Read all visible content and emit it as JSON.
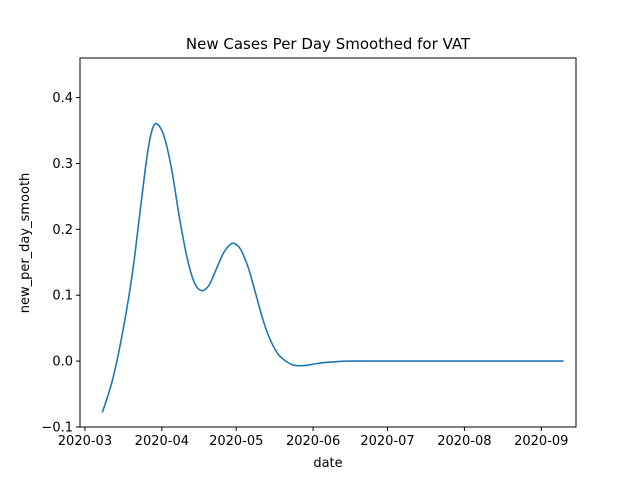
{
  "chart_data": {
    "type": "line",
    "title": "New Cases Per Day Smoothed for VAT",
    "xlabel": "date",
    "ylabel": "new_per_day_smooth",
    "xlim": [
      "2020-02-28",
      "2020-09-15"
    ],
    "ylim": [
      -0.1,
      0.46
    ],
    "x_ticks": [
      "2020-03-01",
      "2020-04-01",
      "2020-05-01",
      "2020-06-01",
      "2020-07-01",
      "2020-08-01",
      "2020-09-01"
    ],
    "x_tick_labels": [
      "2020-03",
      "2020-04",
      "2020-05",
      "2020-06",
      "2020-07",
      "2020-08",
      "2020-09"
    ],
    "y_ticks": [
      -0.1,
      0.0,
      0.1,
      0.2,
      0.3,
      0.4
    ],
    "y_tick_labels": [
      "−0.1",
      "0.0",
      "0.1",
      "0.2",
      "0.3",
      "0.4"
    ],
    "grid": false,
    "series": [
      {
        "color": "#1f77b4",
        "x": [
          "2020-03-08",
          "2020-03-12",
          "2020-03-16",
          "2020-03-20",
          "2020-03-23",
          "2020-03-26",
          "2020-03-28",
          "2020-03-30",
          "2020-04-02",
          "2020-04-05",
          "2020-04-08",
          "2020-04-11",
          "2020-04-14",
          "2020-04-17",
          "2020-04-20",
          "2020-04-23",
          "2020-04-26",
          "2020-04-29",
          "2020-05-01",
          "2020-05-03",
          "2020-05-06",
          "2020-05-09",
          "2020-05-12",
          "2020-05-15",
          "2020-05-18",
          "2020-05-21",
          "2020-05-24",
          "2020-05-27",
          "2020-05-30",
          "2020-06-02",
          "2020-06-06",
          "2020-06-10",
          "2020-06-15",
          "2020-06-20",
          "2020-06-25",
          "2020-07-01",
          "2020-07-15",
          "2020-08-01",
          "2020-08-15",
          "2020-09-01",
          "2020-09-10"
        ],
        "y": [
          -0.078,
          -0.03,
          0.04,
          0.13,
          0.22,
          0.31,
          0.35,
          0.36,
          0.34,
          0.29,
          0.22,
          0.16,
          0.12,
          0.107,
          0.115,
          0.14,
          0.165,
          0.178,
          0.177,
          0.168,
          0.14,
          0.1,
          0.06,
          0.03,
          0.01,
          0.0,
          -0.006,
          -0.007,
          -0.006,
          -0.004,
          -0.002,
          -0.001,
          0.0,
          0.0,
          0.0,
          0.0,
          0.0,
          0.0,
          0.0,
          0.0,
          0.0
        ]
      }
    ]
  }
}
